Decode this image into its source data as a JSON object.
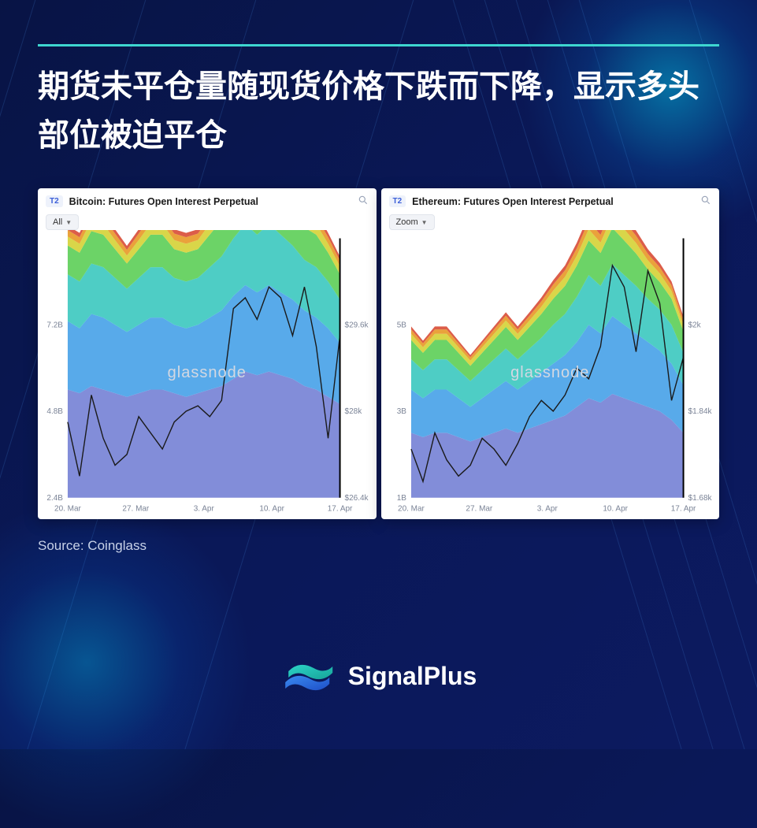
{
  "title": "期货未平仓量随现货价格下跌而下降，显示多头部位被迫平仓",
  "source_label": "Source: Coinglass",
  "brand_name": "SignalPlus",
  "brand_colors": {
    "logo_a": "#2dd4c8",
    "logo_b": "#1e66e8"
  },
  "background": {
    "base": "#0a1552",
    "accent_border": "#3ed6d0"
  },
  "watermark": "glassnode",
  "x_labels": [
    "20. Mar",
    "27. Mar",
    "3. Apr",
    "10. Apr",
    "17. Apr"
  ],
  "charts": [
    {
      "badge": "T2",
      "title": "Bitcoin: Futures Open Interest Perpetual",
      "pill": "All",
      "y_left_ticks": [
        {
          "v": 2.4,
          "l": "2.4B"
        },
        {
          "v": 4.8,
          "l": "4.8B"
        },
        {
          "v": 7.2,
          "l": "7.2B"
        }
      ],
      "y_left_min": 2.4,
      "y_left_max": 9.6,
      "y_right_ticks": [
        {
          "v": 26.4,
          "l": "$26.4k"
        },
        {
          "v": 28.0,
          "l": "$28k"
        },
        {
          "v": 29.6,
          "l": "$29.6k"
        }
      ],
      "y_right_min": 26.4,
      "y_right_max": 31.2,
      "stack_colors": [
        "#7783d6",
        "#4aa3e8",
        "#3fc9c0",
        "#5fcf5a",
        "#d6d23a",
        "#e89a2a",
        "#d94f3a"
      ],
      "stack_series": [
        [
          3.0,
          2.9,
          3.1,
          3.0,
          2.9,
          2.8,
          2.9,
          3.0,
          3.0,
          2.9,
          2.8,
          2.9,
          3.0,
          3.1,
          3.3,
          3.5,
          3.4,
          3.5,
          3.4,
          3.3,
          3.1,
          3.0,
          2.8,
          2.6
        ],
        [
          1.9,
          1.8,
          2.0,
          2.0,
          1.9,
          1.8,
          1.9,
          2.0,
          2.0,
          1.9,
          1.9,
          1.9,
          2.0,
          2.1,
          2.3,
          2.4,
          2.3,
          2.4,
          2.3,
          2.2,
          2.1,
          2.0,
          1.9,
          1.7
        ],
        [
          1.3,
          1.3,
          1.4,
          1.4,
          1.3,
          1.2,
          1.3,
          1.4,
          1.4,
          1.3,
          1.3,
          1.3,
          1.4,
          1.5,
          1.6,
          1.7,
          1.6,
          1.7,
          1.6,
          1.5,
          1.4,
          1.4,
          1.3,
          1.2
        ],
        [
          0.8,
          0.8,
          0.9,
          0.9,
          0.8,
          0.7,
          0.8,
          0.9,
          0.9,
          0.8,
          0.8,
          0.8,
          0.9,
          1.0,
          1.1,
          1.2,
          1.1,
          1.2,
          1.1,
          1.0,
          0.9,
          0.9,
          0.8,
          0.7
        ],
        [
          0.25,
          0.25,
          0.3,
          0.3,
          0.25,
          0.22,
          0.25,
          0.3,
          0.3,
          0.25,
          0.25,
          0.25,
          0.3,
          0.35,
          0.4,
          0.45,
          0.4,
          0.45,
          0.4,
          0.35,
          0.3,
          0.3,
          0.25,
          0.22
        ],
        [
          0.18,
          0.18,
          0.2,
          0.2,
          0.18,
          0.16,
          0.18,
          0.2,
          0.2,
          0.18,
          0.18,
          0.18,
          0.2,
          0.24,
          0.28,
          0.32,
          0.28,
          0.32,
          0.28,
          0.24,
          0.2,
          0.2,
          0.18,
          0.16
        ],
        [
          0.12,
          0.12,
          0.14,
          0.14,
          0.12,
          0.11,
          0.12,
          0.14,
          0.14,
          0.12,
          0.12,
          0.12,
          0.14,
          0.17,
          0.2,
          0.23,
          0.2,
          0.23,
          0.2,
          0.17,
          0.14,
          0.14,
          0.12,
          0.11
        ]
      ],
      "price_line": [
        27.8,
        26.8,
        28.3,
        27.5,
        27.0,
        27.2,
        27.9,
        27.6,
        27.3,
        27.8,
        28.0,
        28.1,
        27.9,
        28.2,
        29.9,
        30.1,
        29.7,
        30.3,
        30.1,
        29.4,
        30.3,
        29.2,
        27.5,
        29.4
      ]
    },
    {
      "badge": "T2",
      "title": "Ethereum: Futures Open Interest Perpetual",
      "pill": "Zoom",
      "y_left_ticks": [
        {
          "v": 1.0,
          "l": "1B"
        },
        {
          "v": 3.0,
          "l": "3B"
        },
        {
          "v": 5.0,
          "l": "5B"
        }
      ],
      "y_left_min": 1.0,
      "y_left_max": 7.0,
      "y_right_ticks": [
        {
          "v": 1.68,
          "l": "$1.68k"
        },
        {
          "v": 1.84,
          "l": "$1.84k"
        },
        {
          "v": 2.0,
          "l": "$2k"
        }
      ],
      "y_right_min": 1.68,
      "y_right_max": 2.16,
      "stack_colors": [
        "#7783d6",
        "#4aa3e8",
        "#3fc9c0",
        "#5fcf5a",
        "#d6d23a",
        "#e89a2a",
        "#d94f3a"
      ],
      "stack_series": [
        [
          1.5,
          1.4,
          1.5,
          1.5,
          1.4,
          1.3,
          1.4,
          1.5,
          1.6,
          1.5,
          1.6,
          1.7,
          1.8,
          1.9,
          2.1,
          2.3,
          2.2,
          2.4,
          2.3,
          2.2,
          2.1,
          2.0,
          1.8,
          1.5
        ],
        [
          1.0,
          0.9,
          1.0,
          1.0,
          0.9,
          0.8,
          0.9,
          1.0,
          1.1,
          1.0,
          1.1,
          1.2,
          1.3,
          1.4,
          1.5,
          1.7,
          1.6,
          1.8,
          1.7,
          1.6,
          1.5,
          1.4,
          1.3,
          1.1
        ],
        [
          0.7,
          0.65,
          0.7,
          0.7,
          0.65,
          0.6,
          0.65,
          0.7,
          0.75,
          0.7,
          0.75,
          0.8,
          0.9,
          0.95,
          1.05,
          1.15,
          1.1,
          1.2,
          1.15,
          1.1,
          1.0,
          0.95,
          0.9,
          0.75
        ],
        [
          0.45,
          0.4,
          0.45,
          0.45,
          0.4,
          0.35,
          0.4,
          0.45,
          0.5,
          0.45,
          0.5,
          0.55,
          0.6,
          0.65,
          0.72,
          0.8,
          0.76,
          0.84,
          0.8,
          0.75,
          0.68,
          0.64,
          0.6,
          0.5
        ],
        [
          0.14,
          0.13,
          0.14,
          0.14,
          0.13,
          0.12,
          0.13,
          0.14,
          0.15,
          0.14,
          0.15,
          0.17,
          0.19,
          0.21,
          0.23,
          0.26,
          0.24,
          0.28,
          0.26,
          0.24,
          0.21,
          0.2,
          0.18,
          0.15
        ],
        [
          0.1,
          0.09,
          0.1,
          0.1,
          0.09,
          0.08,
          0.09,
          0.1,
          0.11,
          0.1,
          0.11,
          0.12,
          0.14,
          0.15,
          0.17,
          0.19,
          0.18,
          0.2,
          0.19,
          0.17,
          0.15,
          0.14,
          0.13,
          0.11
        ],
        [
          0.07,
          0.06,
          0.07,
          0.07,
          0.06,
          0.05,
          0.06,
          0.07,
          0.08,
          0.07,
          0.08,
          0.09,
          0.1,
          0.11,
          0.13,
          0.14,
          0.13,
          0.15,
          0.14,
          0.12,
          0.11,
          0.1,
          0.09,
          0.08
        ]
      ],
      "price_line": [
        1.77,
        1.71,
        1.8,
        1.75,
        1.72,
        1.74,
        1.79,
        1.77,
        1.74,
        1.78,
        1.83,
        1.86,
        1.84,
        1.87,
        1.92,
        1.9,
        1.96,
        2.11,
        2.07,
        1.95,
        2.1,
        2.04,
        1.86,
        1.94
      ]
    }
  ]
}
